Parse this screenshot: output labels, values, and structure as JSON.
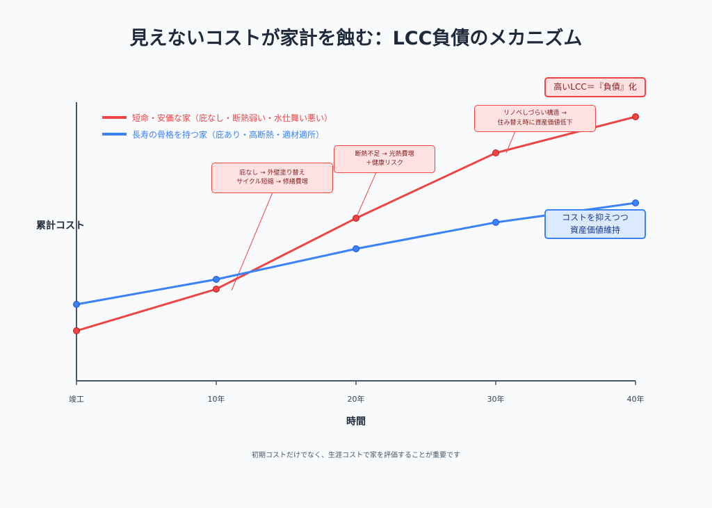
{
  "title": "見えないコストが家計を蝕む：LCC負債のメカニズム",
  "footnote": "初期コストだけでなく、生涯コストで家を評価することが重要です",
  "chart_data": {
    "type": "line",
    "title": "見えないコストが家計を蝕む：LCC負債のメカニズム",
    "xlabel": "時間",
    "ylabel": "累計コスト",
    "x": [
      0,
      10,
      20,
      30,
      40
    ],
    "x_tick_labels": [
      "竣工",
      "10年",
      "20年",
      "30年",
      "40年"
    ],
    "xlim": [
      0,
      40
    ],
    "ylim": [
      0,
      100
    ],
    "y_ticks_shown": false,
    "grid": false,
    "legend_position": "top-left",
    "series": [
      {
        "name": "短命・安価な家（庇なし・断熱弱い・水仕舞い悪い）",
        "color": "#ef4444",
        "values": [
          18,
          33,
          58.5,
          82,
          95
        ]
      },
      {
        "name": "長寿の骨格を持つ家（庇あり・高断熱・適材適所）",
        "color": "#3b82f6",
        "values": [
          27.5,
          36.5,
          47.5,
          57,
          64
        ]
      }
    ],
    "annotations": [
      {
        "lines": [
          "庇なし → 外壁塗り替え",
          "サイクル短縮 → 修繕費増"
        ],
        "series": 0,
        "x": 10
      },
      {
        "lines": [
          "断熱不足 → 光熱費増",
          "＋健康リスク"
        ],
        "series": 0,
        "x": 20
      },
      {
        "lines": [
          "リノベしづらい構造 →",
          "住み替え時に資産価値低下"
        ],
        "series": 0,
        "x": 30
      },
      {
        "lines": [
          "高いLCC＝『負債』化"
        ],
        "series": 0,
        "x": 40
      },
      {
        "lines": [
          "コストを抑えつつ",
          "資産価値維持"
        ],
        "series": 1,
        "x": 40
      }
    ]
  }
}
